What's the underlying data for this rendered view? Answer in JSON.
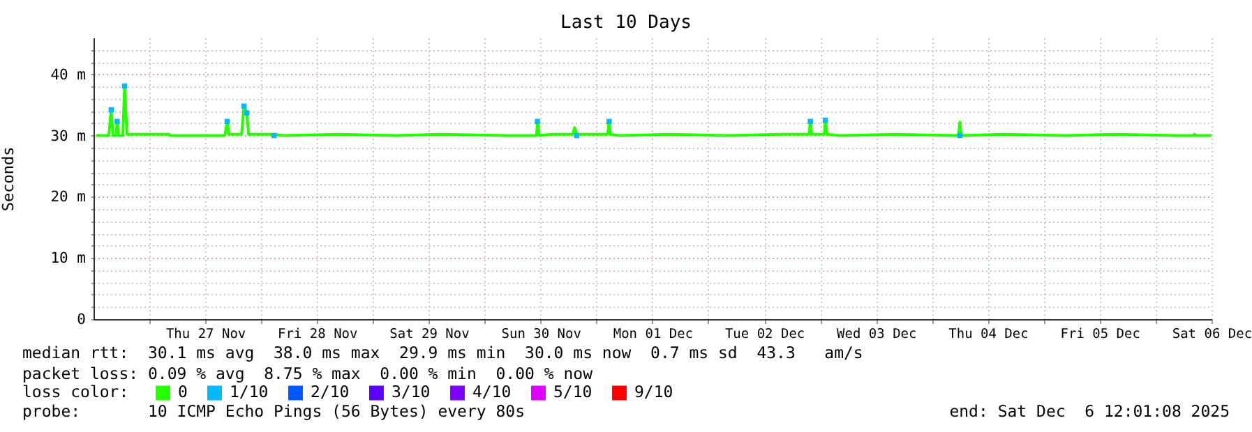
{
  "chart_data": {
    "type": "line",
    "title": "Last 10 Days",
    "ylabel": "Seconds",
    "legend_title": "loss color:",
    "legend": "bottom",
    "grid": true,
    "xlim": [
      "2025-11-26T12:01",
      "2025-12-06T12:01"
    ],
    "xticks": [
      {
        "value": "2025-11-27T00:00",
        "label": null
      },
      {
        "value": "2025-11-27T12:00",
        "label": "Thu 27 Nov"
      },
      {
        "value": "2025-11-28T00:00",
        "label": null
      },
      {
        "value": "2025-11-28T12:00",
        "label": "Fri 28 Nov"
      },
      {
        "value": "2025-11-29T00:00",
        "label": null
      },
      {
        "value": "2025-11-29T12:00",
        "label": "Sat 29 Nov"
      },
      {
        "value": "2025-11-30T00:00",
        "label": null
      },
      {
        "value": "2025-11-30T12:00",
        "label": "Sun 30 Nov"
      },
      {
        "value": "2025-12-01T00:00",
        "label": null
      },
      {
        "value": "2025-12-01T12:00",
        "label": "Mon 01 Dec"
      },
      {
        "value": "2025-12-02T00:00",
        "label": null
      },
      {
        "value": "2025-12-02T12:00",
        "label": "Tue 02 Dec"
      },
      {
        "value": "2025-12-03T00:00",
        "label": null
      },
      {
        "value": "2025-12-03T12:00",
        "label": "Wed 03 Dec"
      },
      {
        "value": "2025-12-04T00:00",
        "label": null
      },
      {
        "value": "2025-12-04T12:00",
        "label": "Thu 04 Dec"
      },
      {
        "value": "2025-12-05T00:00",
        "label": null
      },
      {
        "value": "2025-12-05T12:00",
        "label": "Fri 05 Dec"
      },
      {
        "value": "2025-12-06T00:00",
        "label": null
      },
      {
        "value": "2025-12-06T12:00",
        "label": "Sat 06 Dec"
      }
    ],
    "ylim": [
      0,
      46
    ],
    "yticks": [
      {
        "value": 0,
        "label": "0"
      },
      {
        "value": 2,
        "label": null
      },
      {
        "value": 4,
        "label": null
      },
      {
        "value": 6,
        "label": null
      },
      {
        "value": 8,
        "label": null
      },
      {
        "value": 10,
        "label": "10 m"
      },
      {
        "value": 12,
        "label": null
      },
      {
        "value": 14,
        "label": null
      },
      {
        "value": 16,
        "label": null
      },
      {
        "value": 18,
        "label": null
      },
      {
        "value": 20,
        "label": "20 m"
      },
      {
        "value": 22,
        "label": null
      },
      {
        "value": 24,
        "label": null
      },
      {
        "value": 26,
        "label": null
      },
      {
        "value": 28,
        "label": null
      },
      {
        "value": 30,
        "label": "30 m"
      },
      {
        "value": 32,
        "label": null
      },
      {
        "value": 34,
        "label": null
      },
      {
        "value": 36,
        "label": null
      },
      {
        "value": 38,
        "label": null
      },
      {
        "value": 40,
        "label": "40 m"
      },
      {
        "value": 42,
        "label": null
      },
      {
        "value": 44,
        "label": null
      }
    ],
    "series": [
      {
        "name": "0",
        "color": "#26ff00",
        "x": [
          "2025-11-26T12:36",
          "2025-11-26T15:18",
          "2025-11-26T15:49",
          "2025-11-26T16:12",
          "2025-11-26T16:48",
          "2025-11-26T17:06",
          "2025-11-26T17:24",
          "2025-11-26T18:18",
          "2025-11-26T18:41",
          "2025-11-26T19:12",
          "2025-11-27T04:12",
          "2025-11-27T04:30",
          "2025-11-27T16:12",
          "2025-11-27T16:43",
          "2025-11-27T17:06",
          "2025-11-27T19:48",
          "2025-11-27T20:19",
          "2025-11-27T20:55",
          "2025-11-27T21:18",
          "2025-11-28T02:42",
          "2025-11-28T04:48",
          "2025-11-28T16:30",
          "2025-11-29T04:48",
          "2025-11-29T14:24",
          "2025-11-30T04:48",
          "2025-11-30T11:06",
          "2025-11-30T11:19",
          "2025-11-30T11:42",
          "2025-11-30T14:24",
          "2025-11-30T18:54",
          "2025-11-30T19:17",
          "2025-11-30T19:48",
          "2025-12-01T02:24",
          "2025-12-01T02:42",
          "2025-12-01T03:00",
          "2025-12-01T04:48",
          "2025-12-01T15:59",
          "2025-12-02T04:12",
          "2025-12-02T15:30",
          "2025-12-02T21:36",
          "2025-12-02T21:54",
          "2025-12-02T22:12",
          "2025-12-03T00:54",
          "2025-12-03T01:07",
          "2025-12-03T01:30",
          "2025-12-03T04:12",
          "2025-12-03T15:54",
          "2025-12-04T05:00",
          "2025-12-04T05:42",
          "2025-12-04T06:00",
          "2025-12-04T06:18",
          "2025-12-04T15:18",
          "2025-12-05T04:48",
          "2025-12-05T15:18",
          "2025-12-06T04:30",
          "2025-12-06T08:06",
          "2025-12-06T08:19",
          "2025-12-06T08:42",
          "2025-12-06T12:00"
        ],
        "values": [
          30.0,
          30.0,
          34.2,
          30.0,
          30.0,
          32.3,
          30.0,
          30.0,
          38.1,
          30.2,
          30.2,
          30.0,
          30.0,
          32.3,
          30.2,
          30.2,
          34.8,
          33.7,
          30.2,
          30.2,
          30.0,
          30.2,
          30.0,
          30.2,
          30.0,
          30.0,
          32.3,
          30.0,
          30.2,
          30.2,
          31.3,
          30.2,
          30.2,
          32.3,
          30.2,
          30.0,
          30.2,
          30.0,
          30.2,
          30.2,
          32.3,
          30.2,
          30.2,
          32.5,
          30.2,
          30.0,
          30.2,
          30.0,
          30.0,
          32.2,
          30.0,
          30.2,
          30.0,
          30.2,
          30.0,
          30.0,
          30.2,
          30.0,
          30.0
        ]
      },
      {
        "name": "1/10",
        "type": "scatter",
        "color": "#00b8ff",
        "x": [
          "2025-11-26T15:49",
          "2025-11-26T17:06",
          "2025-11-26T18:41",
          "2025-11-27T16:43",
          "2025-11-27T20:19",
          "2025-11-27T20:55",
          "2025-11-28T02:47",
          "2025-11-30T11:19",
          "2025-11-30T19:43",
          "2025-12-01T02:42",
          "2025-12-02T21:54",
          "2025-12-03T01:07",
          "2025-12-04T06:00"
        ],
        "values": [
          34.2,
          32.3,
          38.1,
          32.3,
          34.8,
          33.7,
          30.0,
          32.3,
          30.0,
          32.3,
          32.3,
          32.5,
          30.0
        ]
      },
      {
        "name": "2/10",
        "type": "scatter",
        "color": "#0059ff"
      },
      {
        "name": "3/10",
        "type": "scatter",
        "color": "#5e00ff"
      },
      {
        "name": "4/10",
        "type": "scatter",
        "color": "#7e00ff"
      },
      {
        "name": "5/10",
        "type": "scatter",
        "color": "#dd00ff"
      },
      {
        "name": "9/10",
        "type": "scatter",
        "color": "#ff0000"
      }
    ],
    "annotations": [
      "median rtt:  30.1 ms avg  38.0 ms max  29.9 ms min  30.0 ms now  0.7 ms sd  43.3   am/s",
      "packet loss: 0.09 % avg  8.75 % max  0.00 % min  0.00 % now",
      "probe:       10 ICMP Echo Pings (56 Bytes) every 80s",
      "end: Sat Dec  6 12:01:08 2025"
    ]
  }
}
